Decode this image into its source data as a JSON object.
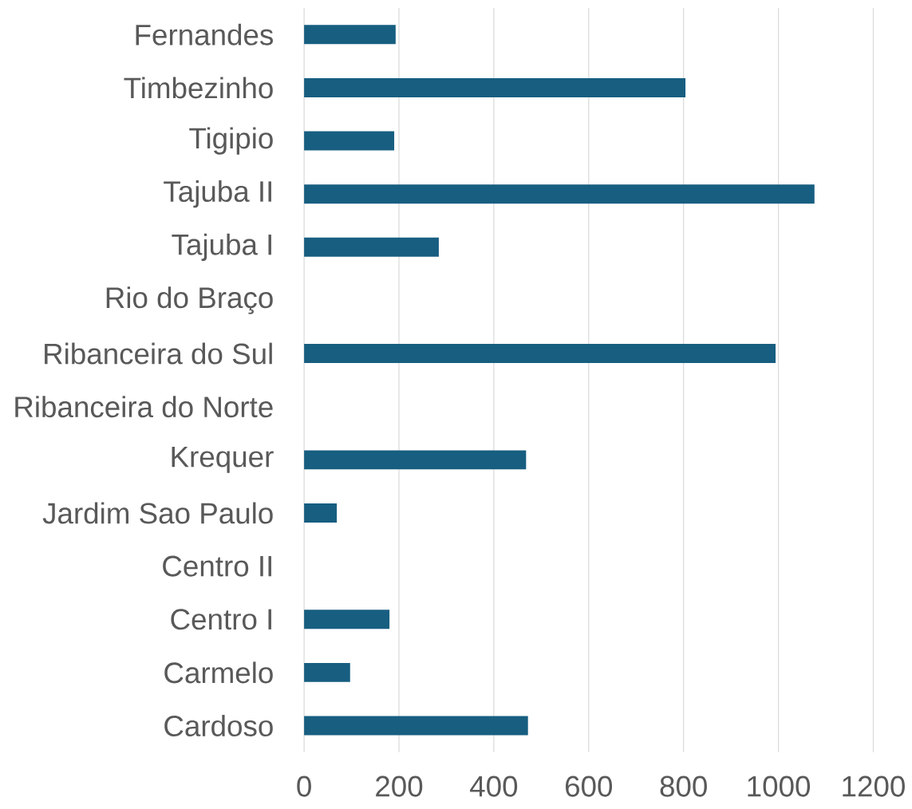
{
  "chart_data": {
    "type": "bar",
    "orientation": "horizontal",
    "categories": [
      "Fernandes",
      "Timbezinho",
      "Tigipio",
      "Tajuba II",
      "Tajuba I",
      "Rio do Braço",
      "Ribanceira do Sul",
      "Ribanceira do Norte",
      "Krequer",
      "Jardim Sao Paulo",
      "Centro II",
      "Centro I",
      "Carmelo",
      "Cardoso"
    ],
    "values": [
      193,
      804,
      190,
      1076,
      284,
      null,
      994,
      null,
      468,
      69,
      null,
      180,
      97,
      472
    ],
    "color": "#175e80",
    "xlim": [
      0,
      1200
    ],
    "xticks": [
      0,
      200,
      400,
      600,
      800,
      1000,
      1200
    ],
    "grid": "x"
  }
}
